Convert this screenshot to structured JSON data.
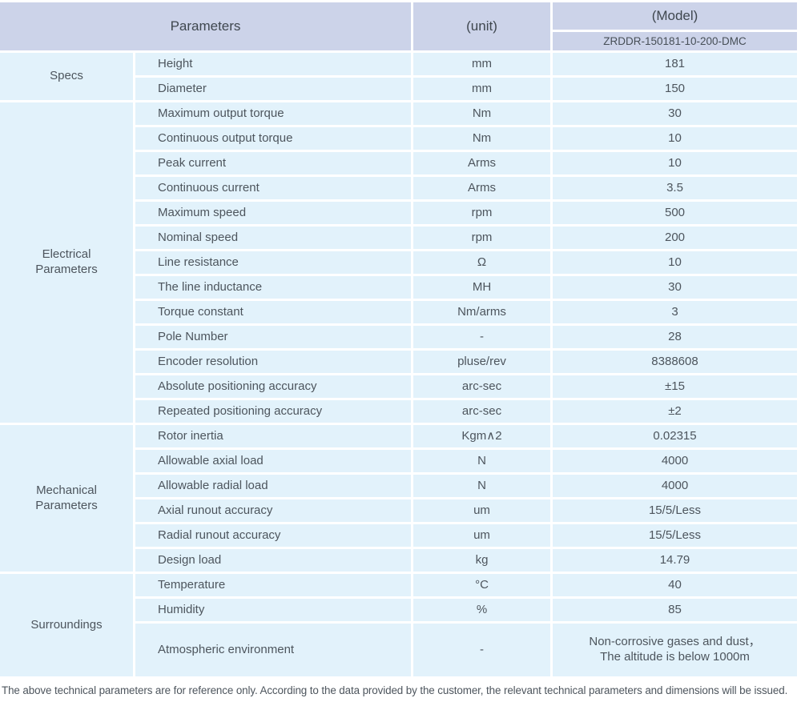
{
  "table": {
    "header": {
      "parameters_label": "Parameters",
      "unit_label": "(unit)",
      "model_label": "(Model)",
      "model_value": "ZRDDR-150181-10-200-DMC"
    },
    "groups": [
      {
        "label": "Specs",
        "rows": [
          {
            "param": "Height",
            "unit": "mm",
            "value": "181"
          },
          {
            "param": "Diameter",
            "unit": "mm",
            "value": "150"
          }
        ]
      },
      {
        "label": "Electrical\nParameters",
        "rows": [
          {
            "param": "Maximum output torque",
            "unit": "Nm",
            "value": "30"
          },
          {
            "param": "Continuous output torque",
            "unit": "Nm",
            "value": "10"
          },
          {
            "param": "Peak current",
            "unit": "Arms",
            "value": "10"
          },
          {
            "param": "Continuous current",
            "unit": "Arms",
            "value": "3.5"
          },
          {
            "param": "Maximum speed",
            "unit": "rpm",
            "value": "500"
          },
          {
            "param": "Nominal speed",
            "unit": "rpm",
            "value": "200"
          },
          {
            "param": "Line resistance",
            "unit": "Ω",
            "value": "10"
          },
          {
            "param": "The line inductance",
            "unit": "MH",
            "value": "30"
          },
          {
            "param": "Torque constant",
            "unit": "Nm/arms",
            "value": "3"
          },
          {
            "param": "Pole Number",
            "unit": "-",
            "value": "28"
          },
          {
            "param": "Encoder resolution",
            "unit": "pluse/rev",
            "value": "8388608"
          },
          {
            "param": "Absolute positioning accuracy",
            "unit": "arc-sec",
            "value": "±15"
          },
          {
            "param": "Repeated positioning accuracy",
            "unit": "arc-sec",
            "value": "±2"
          }
        ]
      },
      {
        "label": "Mechanical\nParameters",
        "rows": [
          {
            "param": "Rotor inertia",
            "unit": "Kgm∧2",
            "value": "0.02315"
          },
          {
            "param": "Allowable axial load",
            "unit": "N",
            "value": "4000"
          },
          {
            "param": "Allowable radial load",
            "unit": "N",
            "value": "4000"
          },
          {
            "param": "Axial runout accuracy",
            "unit": "um",
            "value": "15/5/Less"
          },
          {
            "param": "Radial runout accuracy",
            "unit": "um",
            "value": "15/5/Less"
          },
          {
            "param": "Design load",
            "unit": "kg",
            "value": "14.79"
          }
        ]
      },
      {
        "label": "Surroundings",
        "rows": [
          {
            "param": "Temperature",
            "unit": "°C",
            "value": "40"
          },
          {
            "param": "Humidity",
            "unit": "%",
            "value": "85"
          },
          {
            "param": "Atmospheric environment",
            "unit": "-",
            "value": "Non-corrosive gases and dust，\nThe altitude is below 1000m"
          }
        ]
      }
    ]
  },
  "footer": {
    "note": "The above technical parameters are for reference only. According to the data provided by the customer, the relevant technical parameters and dimensions will be issued."
  },
  "colors": {
    "header_bg": "#ccd3e9",
    "row_bg": "#e2f2fb",
    "grid_line": "#ffffff",
    "text": "#4d555d"
  }
}
